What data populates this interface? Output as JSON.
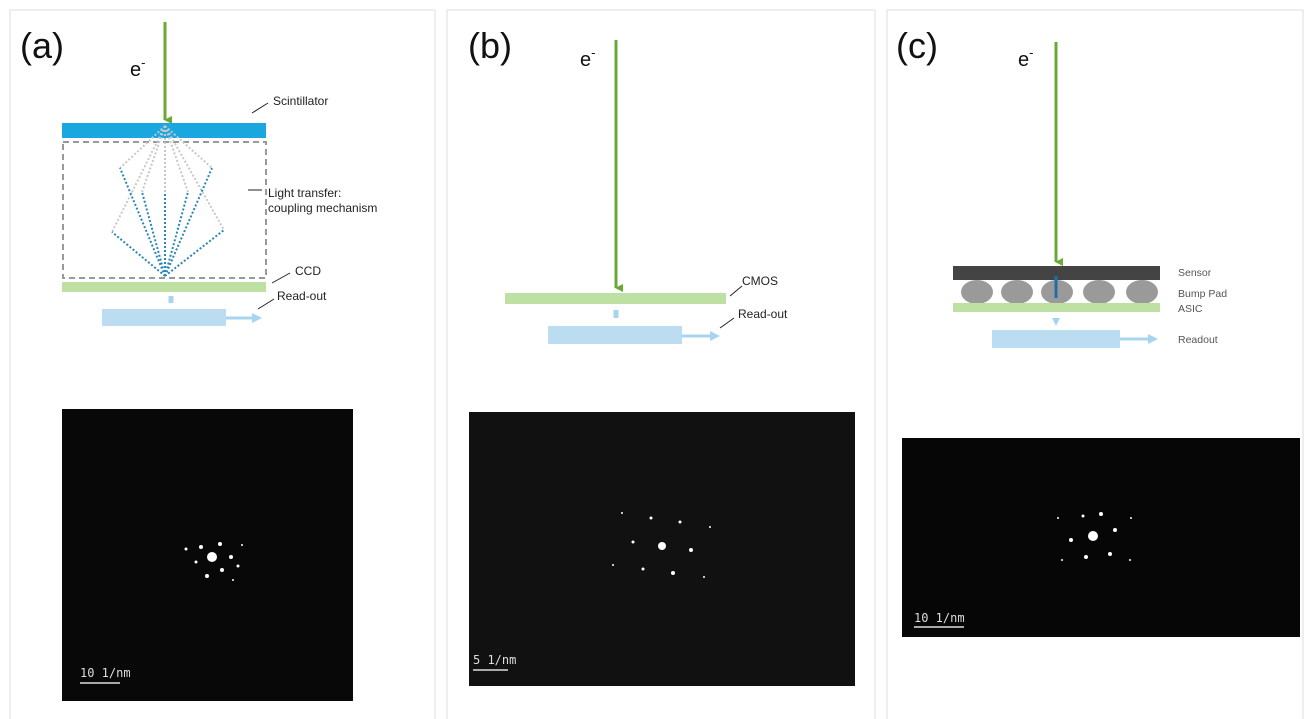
{
  "panels": [
    {
      "label": "(a)",
      "electron": "e",
      "electron_sup": "-",
      "parts": [
        "Scintillator",
        "Light transfer:",
        "coupling mechanism",
        "CCD",
        "Read-out"
      ],
      "scale_bar": "10 1/nm"
    },
    {
      "label": "(b)",
      "electron": "e",
      "electron_sup": "-",
      "parts": [
        "CMOS",
        "Read-out"
      ],
      "scale_bar": "5 1/nm"
    },
    {
      "label": "(c)",
      "electron": "e",
      "electron_sup": "-",
      "parts": [
        "Sensor",
        "Bump Pad",
        "ASIC",
        "Readout"
      ],
      "scale_bar": "10 1/nm"
    }
  ]
}
